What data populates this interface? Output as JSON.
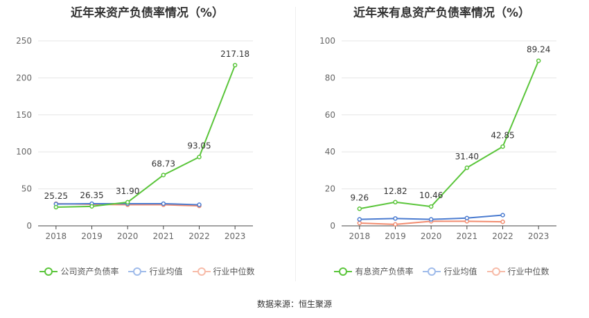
{
  "chart_data": [
    {
      "type": "line",
      "title": "近年来资产负债率情况（%）",
      "categories": [
        "2018",
        "2019",
        "2020",
        "2021",
        "2022",
        "2023"
      ],
      "yticks": [
        "0",
        "50",
        "100",
        "150",
        "200",
        "250"
      ],
      "ylim": [
        0,
        250
      ],
      "series": [
        {
          "name": "公司资产负债率",
          "color": "#5ac53a",
          "values": [
            25.25,
            26.35,
            31.9,
            68.73,
            93.05,
            217.18
          ],
          "labels": [
            "25.25",
            "26.35",
            "31.90",
            "68.73",
            "93.05",
            "217.18"
          ]
        },
        {
          "name": "行业均值",
          "color": "#4a7bd0",
          "values": [
            29.5,
            30.0,
            30.0,
            30.0,
            28.5,
            null
          ]
        },
        {
          "name": "行业中位数",
          "color": "#f28b6e",
          "values": [
            30.0,
            29.0,
            28.5,
            28.5,
            27.0,
            null
          ]
        }
      ],
      "grid": true,
      "legend_position": "bottom"
    },
    {
      "type": "line",
      "title": "近年来有息资产负债率情况（%）",
      "categories": [
        "2018",
        "2019",
        "2020",
        "2021",
        "2022",
        "2023"
      ],
      "yticks": [
        "0",
        "20",
        "40",
        "60",
        "80",
        "100"
      ],
      "ylim": [
        0,
        100
      ],
      "series": [
        {
          "name": "有息资产负债率",
          "color": "#5ac53a",
          "values": [
            9.26,
            12.82,
            10.46,
            31.4,
            42.85,
            89.24
          ],
          "labels": [
            "9.26",
            "12.82",
            "10.46",
            "31.40",
            "42.85",
            "89.24"
          ]
        },
        {
          "name": "行业均值",
          "color": "#4a7bd0",
          "values": [
            3.5,
            4.0,
            3.5,
            4.2,
            5.8,
            null
          ]
        },
        {
          "name": "行业中位数",
          "color": "#f28b6e",
          "values": [
            1.5,
            0.8,
            2.5,
            2.5,
            2.2,
            null
          ]
        }
      ],
      "grid": true,
      "legend_position": "bottom"
    }
  ],
  "footer": {
    "source": "数据来源：恒生聚源"
  }
}
